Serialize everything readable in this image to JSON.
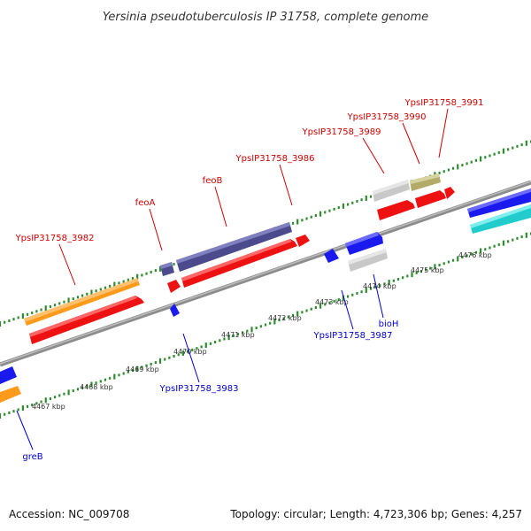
{
  "title": "Yersinia pseudotuberculosis IP 31758, complete genome",
  "footer": {
    "accession": "Accession: NC_009708",
    "topology": "Topology: circular; Length: 4,723,306 bp; Genes: 4,257"
  },
  "scale": [
    {
      "label": "4467 kbp",
      "kbp": 4467
    },
    {
      "label": "4468 kbp",
      "kbp": 4468
    },
    {
      "label": "4469 kbp",
      "kbp": 4469
    },
    {
      "label": "4470 kbp",
      "kbp": 4470
    },
    {
      "label": "4471 kbp",
      "kbp": 4471
    },
    {
      "label": "4472 kbp",
      "kbp": 4472
    },
    {
      "label": "4473 kbp",
      "kbp": 4473
    },
    {
      "label": "4474 kbp",
      "kbp": 4474
    },
    {
      "label": "4475 kbp",
      "kbp": 4475
    },
    {
      "label": "4476 kbp",
      "kbp": 4476
    }
  ],
  "colors": {
    "forward_label": "#cc0000",
    "reverse_label": "#0000cc",
    "backbone": "#888888",
    "tick": "#2e8b2e",
    "cds": "#ee1111",
    "gene_orange": "#ff9a1a",
    "gene_purple": "#4a4a8c",
    "gene_grey": "#c8c8c8",
    "gene_olive": "#b2aa66",
    "gene_blue": "#1a1aee",
    "gene_cyan": "#22cccc"
  },
  "forward_labels": [
    {
      "text": "YpsIP31758_3982"
    },
    {
      "text": "feoA"
    },
    {
      "text": "feoB"
    },
    {
      "text": "YpsIP31758_3986"
    },
    {
      "text": "YpsIP31758_3989"
    },
    {
      "text": "YpsIP31758_3990"
    },
    {
      "text": "YpsIP31758_3991"
    }
  ],
  "reverse_labels": [
    {
      "text": "greB"
    },
    {
      "text": "YpsIP31758_3983"
    },
    {
      "text": "YpsIP31758_3987"
    },
    {
      "text": "bioH"
    }
  ]
}
